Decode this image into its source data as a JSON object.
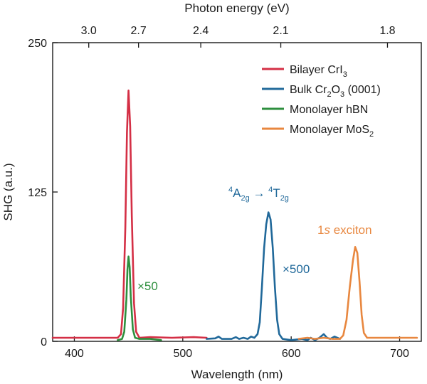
{
  "chart_data": {
    "type": "line",
    "xlabel": "Wavelength (nm)",
    "ylabel": "SHG (a.u.)",
    "top_axis_label": "Photon energy (eV)",
    "xlim": [
      380,
      720
    ],
    "ylim": [
      0,
      250
    ],
    "x_ticks": [
      400,
      500,
      600,
      700
    ],
    "x_tick_labels": [
      "400",
      "500",
      "600",
      "700"
    ],
    "y_ticks": [
      0,
      125,
      250
    ],
    "y_tick_labels": [
      "0",
      "125",
      "250"
    ],
    "top_ticks": [
      3.0,
      2.7,
      2.4,
      2.1,
      1.8
    ],
    "top_tick_labels": [
      "3.0",
      "2.7",
      "2.4",
      "2.1",
      "1.8"
    ],
    "grid": false,
    "legend_position": "top-right",
    "series": [
      {
        "name": "Bilayer CrI3",
        "legend": {
          "base": "Bilayer CrI",
          "sub": "3",
          "after": ""
        },
        "color": "#d42f45",
        "points": [
          [
            380,
            3
          ],
          [
            440,
            3
          ],
          [
            443,
            6
          ],
          [
            445,
            28
          ],
          [
            447,
            95
          ],
          [
            448.5,
            175
          ],
          [
            450,
            210
          ],
          [
            451.5,
            180
          ],
          [
            453,
            105
          ],
          [
            455,
            32
          ],
          [
            457,
            8
          ],
          [
            460,
            3
          ],
          [
            470,
            3.5
          ],
          [
            490,
            3
          ],
          [
            510,
            3.5
          ],
          [
            522,
            3
          ]
        ]
      },
      {
        "name": "Bulk Cr2O3 (0001)",
        "legend": {
          "base": "Bulk Cr",
          "sub": "2",
          "mid": "O",
          "sub2": "3",
          "after": " (0001)"
        },
        "color": "#21699a",
        "points": [
          [
            522,
            2
          ],
          [
            530,
            2.5
          ],
          [
            533,
            4
          ],
          [
            536,
            2
          ],
          [
            545,
            2
          ],
          [
            549,
            3.5
          ],
          [
            552,
            2
          ],
          [
            556,
            3
          ],
          [
            560,
            2
          ],
          [
            563,
            4
          ],
          [
            566,
            3
          ],
          [
            569,
            6
          ],
          [
            571,
            16
          ],
          [
            573,
            45
          ],
          [
            575,
            78
          ],
          [
            577,
            98
          ],
          [
            579,
            108
          ],
          [
            581,
            102
          ],
          [
            583,
            78
          ],
          [
            585,
            45
          ],
          [
            587,
            18
          ],
          [
            589,
            6
          ],
          [
            592,
            2
          ],
          [
            600,
            1
          ],
          [
            610,
            2
          ],
          [
            615,
            1
          ],
          [
            618,
            3
          ],
          [
            622,
            1
          ],
          [
            626,
            3
          ],
          [
            630,
            6
          ],
          [
            633,
            3
          ],
          [
            636,
            2
          ],
          [
            640,
            4
          ],
          [
            645,
            2
          ]
        ]
      },
      {
        "name": "Monolayer hBN",
        "legend": {
          "base": "Monolayer hBN",
          "sub": "",
          "after": ""
        },
        "color": "#2e8f3e",
        "points": [
          [
            440,
            1
          ],
          [
            444,
            2
          ],
          [
            446,
            8
          ],
          [
            448,
            35
          ],
          [
            449,
            60
          ],
          [
            450,
            71
          ],
          [
            451,
            62
          ],
          [
            452,
            38
          ],
          [
            454,
            10
          ],
          [
            456,
            3
          ],
          [
            460,
            2
          ],
          [
            470,
            2
          ],
          [
            480,
            1
          ]
        ]
      },
      {
        "name": "Monolayer MoS2",
        "legend": {
          "base": "Monolayer MoS",
          "sub": "2",
          "after": ""
        },
        "color": "#e8873f",
        "points": [
          [
            607,
            2
          ],
          [
            615,
            3
          ],
          [
            622,
            2
          ],
          [
            630,
            3
          ],
          [
            638,
            2
          ],
          [
            645,
            2
          ],
          [
            648,
            5
          ],
          [
            651,
            18
          ],
          [
            654,
            45
          ],
          [
            657,
            68
          ],
          [
            659,
            79
          ],
          [
            661,
            74
          ],
          [
            663,
            50
          ],
          [
            665,
            22
          ],
          [
            667,
            7
          ],
          [
            670,
            3
          ],
          [
            680,
            3
          ],
          [
            690,
            3
          ],
          [
            705,
            3
          ],
          [
            716,
            3
          ]
        ]
      }
    ],
    "annotations": [
      {
        "text": "×50",
        "color": "#2e8f3e",
        "x": 455,
        "y": 40
      },
      {
        "text": "×500",
        "color": "#21699a",
        "x": 587,
        "y": 55
      },
      {
        "text": "1s exciton",
        "color": "#e8873f",
        "x": 662,
        "y": 87
      },
      {
        "text": "4A2g → 4T2g",
        "color": "#21699a",
        "x": 576,
        "y": 118
      }
    ],
    "annotation_parts": {
      "transition": {
        "sup1": "4",
        "a": "A",
        "sub1": "2g",
        "arrow": " → ",
        "sup2": "4",
        "t": "T",
        "sub2": "2g"
      },
      "exciton": {
        "n": "1",
        "s": "s",
        "rest": " exciton"
      }
    }
  }
}
